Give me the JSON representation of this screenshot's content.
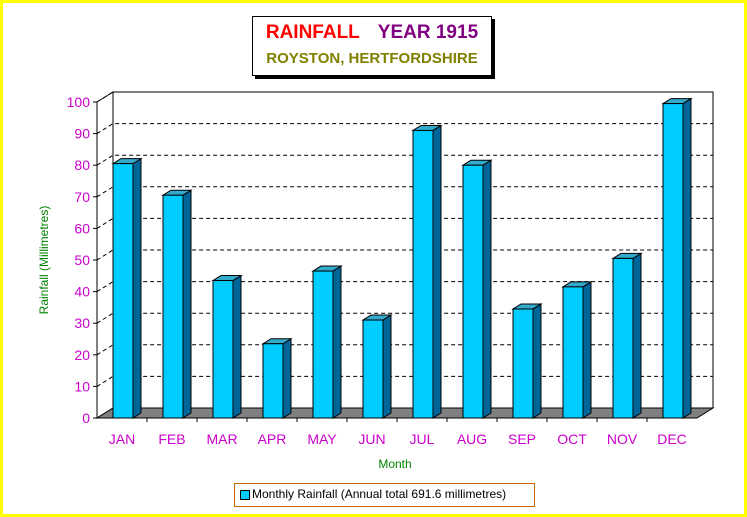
{
  "title_line1_part1": "RAINFALL",
  "title_line1_part2": "YEAR 1915",
  "title_line2": "ROYSTON, HERTFORDSHIRE",
  "colors": {
    "frame": "#ffff00",
    "bar_front": "#00ccff",
    "bar_side": "#006699",
    "bar_top": "#33aacc",
    "floor": "#808080",
    "tick_labels": "#cc00cc",
    "axis_titles": "#008000",
    "title_red": "#ff0000",
    "title_purple": "#800080",
    "subtitle_olive": "#808000"
  },
  "chart_data": {
    "type": "bar",
    "title": "RAINFALL YEAR 1915",
    "subtitle": "ROYSTON, HERTFORDSHIRE",
    "xlabel": "Month",
    "ylabel": "Rainfall (Millimetres)",
    "categories": [
      "JAN",
      "FEB",
      "MAR",
      "APR",
      "MAY",
      "JUN",
      "JUL",
      "AUG",
      "SEP",
      "OCT",
      "NOV",
      "DEC"
    ],
    "series": [
      {
        "name": "Monthly Rainfall (Annual total 691.6 millimetres)",
        "values": [
          80.5,
          70.5,
          43.5,
          23.5,
          46.5,
          31,
          91,
          80,
          34.5,
          41.5,
          50.5,
          99.5
        ]
      }
    ],
    "ylim": [
      0,
      100
    ],
    "yticks": [
      0,
      10,
      20,
      30,
      40,
      50,
      60,
      70,
      80,
      90,
      100
    ],
    "grid": true,
    "legend_position": "bottom",
    "style": "3d"
  }
}
